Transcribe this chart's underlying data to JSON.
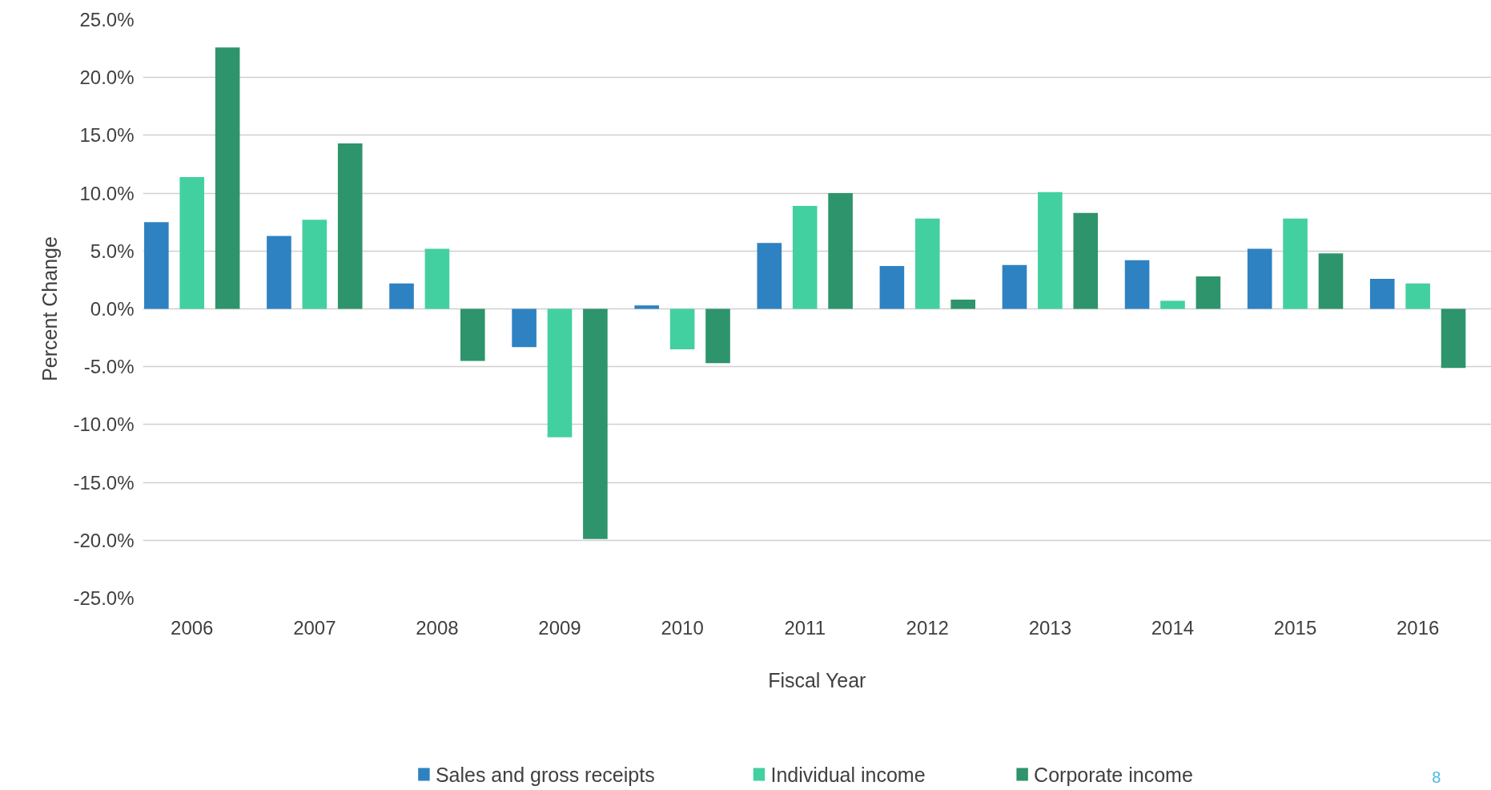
{
  "chart_data": {
    "type": "bar",
    "xlabel": "Fiscal Year",
    "ylabel": "Percent Change",
    "categories": [
      "2006",
      "2007",
      "2008",
      "2009",
      "2010",
      "2011",
      "2012",
      "2013",
      "2014",
      "2015",
      "2016"
    ],
    "series": [
      {
        "name": "Sales and gross receipts",
        "color": "#2e82c2",
        "values": [
          7.5,
          6.3,
          2.2,
          -3.3,
          0.3,
          5.7,
          3.7,
          3.8,
          4.2,
          5.2,
          2.6
        ]
      },
      {
        "name": "Individual income",
        "color": "#43d0a0",
        "values": [
          11.4,
          7.7,
          5.2,
          -11.1,
          -3.5,
          8.9,
          7.8,
          10.1,
          0.7,
          7.8,
          2.2
        ]
      },
      {
        "name": "Corporate income",
        "color": "#2e946c",
        "values": [
          22.6,
          14.3,
          -4.5,
          -19.9,
          -4.7,
          10.0,
          0.8,
          8.3,
          2.8,
          4.8,
          -5.1
        ]
      }
    ],
    "ylim": [
      -25,
      25
    ],
    "yticks": [
      {
        "value": -25,
        "label": "-25.0%"
      },
      {
        "value": -20,
        "label": "-20.0%"
      },
      {
        "value": -15,
        "label": "-15.0%"
      },
      {
        "value": -10,
        "label": "-10.0%"
      },
      {
        "value": -5,
        "label": "-5.0%"
      },
      {
        "value": 0,
        "label": "0.0%"
      },
      {
        "value": 5,
        "label": "5.0%"
      },
      {
        "value": 10,
        "label": "10.0%"
      },
      {
        "value": 15,
        "label": "15.0%"
      },
      {
        "value": 20,
        "label": "20.0%"
      },
      {
        "value": 25,
        "label": "25.0%"
      }
    ],
    "grid": "y",
    "legend": "bottom",
    "annotations": [
      "8"
    ]
  }
}
